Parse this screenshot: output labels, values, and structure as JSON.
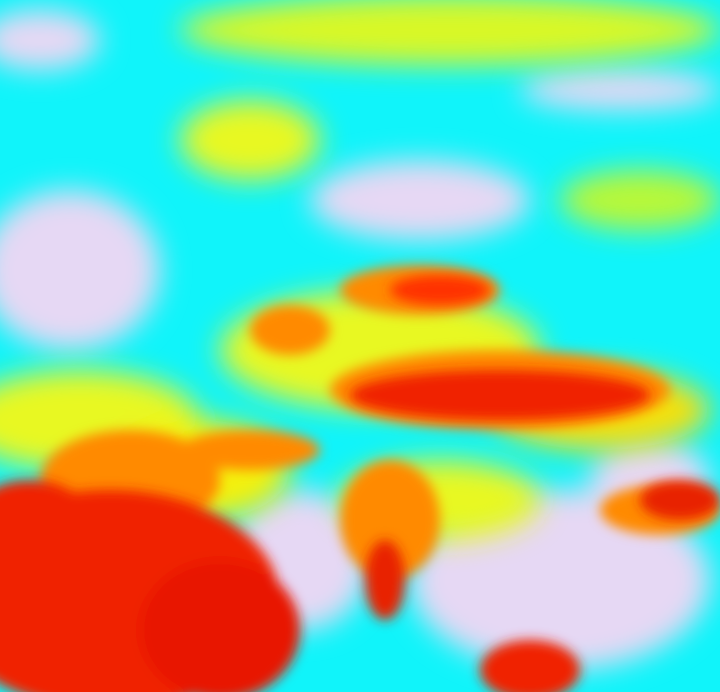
{
  "image": {
    "kind": "false-color satellite imagery",
    "palette": {
      "cyan": "#10f4fa",
      "lavender": "#e6d8f4",
      "yellow": "#e8f820",
      "lime": "#b8f838",
      "orange": "#ff8a00",
      "red": "#f02000",
      "deep_red": "#e01000"
    }
  }
}
